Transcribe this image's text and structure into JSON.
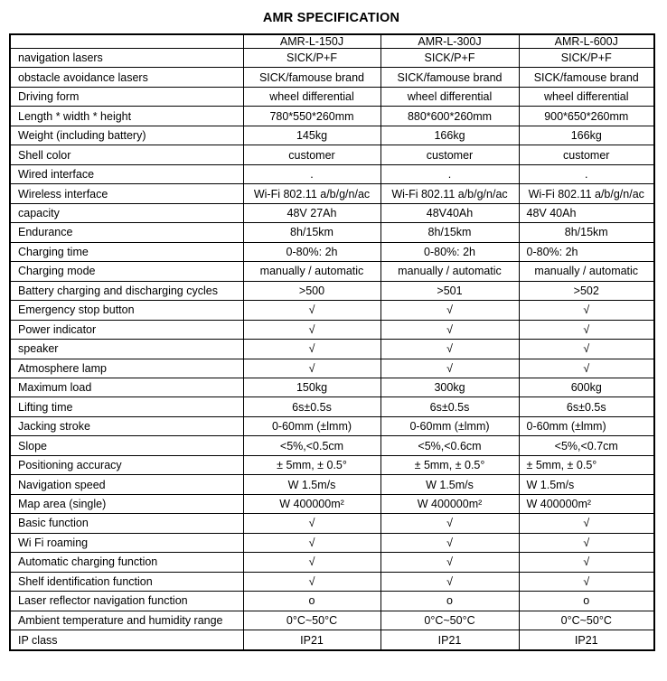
{
  "title": "AMR SPECIFICATION",
  "colors": {
    "background": "#ffffff",
    "text": "#000000",
    "border": "#000000"
  },
  "table": {
    "header": {
      "corner": "",
      "models": [
        "AMR-L-150J",
        "AMR-L-300J",
        "AMR-L-600J"
      ]
    },
    "rows": [
      {
        "label": "navigation lasers",
        "values": [
          "SICK/P+F",
          "SICK/P+F",
          "SICK/P+F"
        ]
      },
      {
        "label": "obstacle avoidance lasers",
        "values": [
          "SICK/famouse brand",
          "SICK/famouse brand",
          "SICK/famouse brand"
        ]
      },
      {
        "label": "Driving form",
        "values": [
          "wheel differential",
          "wheel differential",
          "wheel differential"
        ]
      },
      {
        "label": "Length * width * height",
        "values": [
          "780*550*260mm",
          "880*600*260mm",
          "900*650*260mm"
        ]
      },
      {
        "label": "Weight (including battery)",
        "values": [
          "145kg",
          "166kg",
          "166kg"
        ]
      },
      {
        "label": "Shell color",
        "values": [
          "customer",
          "customer",
          "customer"
        ]
      },
      {
        "label": "Wired interface",
        "values": [
          ".",
          ".",
          "."
        ]
      },
      {
        "label": "Wireless interface",
        "values": [
          "Wi-Fi 802.11 a/b/g/n/ac",
          "Wi-Fi 802.11 a/b/g/n/ac",
          "Wi-Fi 802.11 a/b/g/n/ac"
        ]
      },
      {
        "label": "capacity",
        "values": [
          "48V 27Ah",
          "48V40Ah",
          "48V 40Ah"
        ],
        "aligns": [
          "center",
          "center",
          "left"
        ]
      },
      {
        "label": "Endurance",
        "values": [
          "8h/15km",
          "8h/15km",
          "8h/15km"
        ]
      },
      {
        "label": "Charging time",
        "values": [
          "0-80%: 2h",
          "0-80%: 2h",
          "0-80%: 2h"
        ],
        "aligns": [
          "center",
          "center",
          "left"
        ]
      },
      {
        "label": "Charging mode",
        "values": [
          "manually / automatic",
          "manually / automatic",
          "manually / automatic"
        ]
      },
      {
        "label": "Battery charging and discharging cycles",
        "values": [
          ">500",
          ">501",
          ">502"
        ]
      },
      {
        "label": "Emergency stop button",
        "values": [
          "√",
          "√",
          "√"
        ]
      },
      {
        "label": "Power indicator",
        "values": [
          "√",
          "√",
          "√"
        ]
      },
      {
        "label": "speaker",
        "values": [
          "√",
          "√",
          "√"
        ]
      },
      {
        "label": "Atmosphere lamp",
        "values": [
          "√",
          "√",
          "√"
        ]
      },
      {
        "label": "Maximum load",
        "values": [
          "150kg",
          "300kg",
          "600kg"
        ]
      },
      {
        "label": "Lifting time",
        "values": [
          "6s±0.5s",
          "6s±0.5s",
          "6s±0.5s"
        ]
      },
      {
        "label": "Jacking stroke",
        "values": [
          "0-60mm (±lmm)",
          "0-60mm (±lmm)",
          "0-60mm (±lmm)"
        ],
        "aligns": [
          "center",
          "center",
          "left"
        ]
      },
      {
        "label": "Slope",
        "values": [
          "<5%,<0.5cm",
          "<5%,<0.6cm",
          "<5%,<0.7cm"
        ]
      },
      {
        "label": "Positioning accuracy",
        "values": [
          "± 5mm, ± 0.5°",
          "± 5mm, ± 0.5°",
          "± 5mm, ± 0.5°"
        ],
        "aligns": [
          "center",
          "center",
          "left"
        ]
      },
      {
        "label": "Navigation speed",
        "values": [
          "W 1.5m/s",
          "W 1.5m/s",
          "W 1.5m/s"
        ],
        "aligns": [
          "center",
          "center",
          "left"
        ]
      },
      {
        "label": "Map area (single)",
        "values": [
          "W 400000m²",
          "W 400000m²",
          "W 400000m²"
        ],
        "aligns": [
          "center",
          "center",
          "left"
        ]
      },
      {
        "label": "Basic function",
        "values": [
          "√",
          "√",
          "√"
        ]
      },
      {
        "label": "Wi Fi roaming",
        "values": [
          "√",
          "√",
          "√"
        ]
      },
      {
        "label": "Automatic charging function",
        "values": [
          "√",
          "√",
          "√"
        ]
      },
      {
        "label": "Shelf identification function",
        "values": [
          "√",
          "√",
          "√"
        ]
      },
      {
        "label": "Laser reflector navigation function",
        "values": [
          "o",
          "o",
          "o"
        ]
      },
      {
        "label": "Ambient temperature and humidity range",
        "values": [
          "0°C~50°C",
          "0°C~50°C",
          "0°C~50°C"
        ]
      },
      {
        "label": "IP class",
        "values": [
          "IP21",
          "IP21",
          "IP21"
        ]
      }
    ]
  }
}
